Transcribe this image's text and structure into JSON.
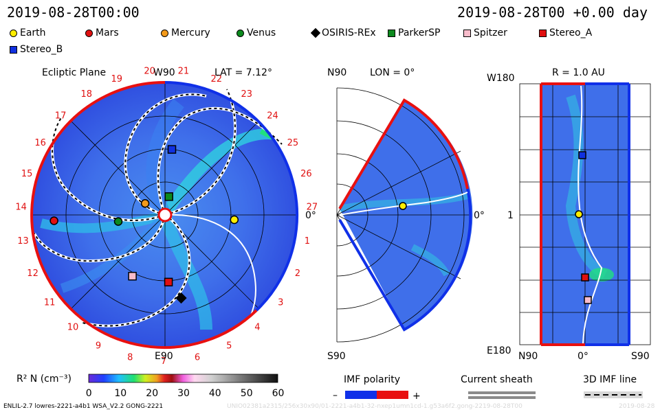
{
  "header": {
    "left_time": "2019-08-28T00:00",
    "right_time": "2019-08-28T00 +0.00 day"
  },
  "legend": [
    {
      "name": "Earth",
      "color": "#ffee00",
      "shape": "circle"
    },
    {
      "name": "Mars",
      "color": "#e01010",
      "shape": "circle"
    },
    {
      "name": "Mercury",
      "color": "#f39a1a",
      "shape": "circle"
    },
    {
      "name": "Venus",
      "color": "#0c8a1e",
      "shape": "circle"
    },
    {
      "name": "OSIRIS-REx",
      "color": "#000000",
      "shape": "diamond"
    },
    {
      "name": "ParkerSP",
      "color": "#0c8a1e",
      "shape": "square"
    },
    {
      "name": "Spitzer",
      "color": "#f8bccb",
      "shape": "square"
    },
    {
      "name": "Stereo_A",
      "color": "#e01010",
      "shape": "square"
    },
    {
      "name": "Stereo_B",
      "color": "#1030e0",
      "shape": "square"
    }
  ],
  "panels": {
    "ecliptic": {
      "title": "Ecliptic Plane",
      "lat_label": "LAT = 7.12°",
      "top_label": "W90",
      "bottom_label": "E90",
      "right_label": "0°"
    },
    "meridional": {
      "top_label": "N90",
      "lon_label": "LON = 0°",
      "bottom_label": "S90",
      "right_label": "0°"
    },
    "radial": {
      "r_label": "R = 1.0 AU",
      "top_left": "W180",
      "bottom_left": "E180",
      "mid_label": "1",
      "x_left": "N90",
      "x_mid": "0°",
      "x_right": "S90"
    }
  },
  "sector_numbers": [
    "1",
    "2",
    "3",
    "4",
    "5",
    "6",
    "7",
    "8",
    "9",
    "10",
    "11",
    "12",
    "13",
    "14",
    "15",
    "16",
    "17",
    "18",
    "19",
    "20",
    "21",
    "22",
    "23",
    "24",
    "25",
    "26",
    "27"
  ],
  "colorbar": {
    "label": "R² N (cm⁻³)",
    "ticks": [
      "0",
      "10",
      "20",
      "30",
      "40",
      "50",
      "60"
    ]
  },
  "imf_polarity": {
    "title": "IMF polarity",
    "minus": "–",
    "plus": "+"
  },
  "current_sheath": {
    "title": "Current sheath"
  },
  "imf_line": {
    "title": "3D IMF line"
  },
  "footer": {
    "model": "ENLIL-2.7 lowres-2221-a4b1 WSA_V2.2 GONG-2221",
    "run_id": "UNIO02381a2315/256x30x90/01-2221-a4b1-32-nxep1umn1cd-1.g53a6f2.gong-2219-08-28T00",
    "date": "2019-08-28"
  },
  "chart_data": {
    "type": "heatmap",
    "title": "Ecliptic Plane",
    "planet_positions_ecliptic": [
      {
        "name": "Earth",
        "angle_deg": -4,
        "r_au": 1.0
      },
      {
        "name": "Mars",
        "angle_deg": 183,
        "r_au": 1.6
      },
      {
        "name": "Mercury",
        "angle_deg": 150,
        "r_au": 0.33
      },
      {
        "name": "Venus",
        "angle_deg": -172,
        "r_au": 0.68
      },
      {
        "name": "ParkerSP",
        "angle_deg": 78,
        "r_au": 0.27
      },
      {
        "name": "Stereo_B",
        "angle_deg": 84,
        "r_au": 0.95
      },
      {
        "name": "Stereo_A",
        "angle_deg": -87,
        "r_au": 0.97
      },
      {
        "name": "Spitzer",
        "angle_deg": -118,
        "r_au": 1.0
      },
      {
        "name": "OSIRIS-REx",
        "angle_deg": -79,
        "r_au": 1.22
      }
    ],
    "colorbar_range": [
      0,
      60
    ]
  }
}
